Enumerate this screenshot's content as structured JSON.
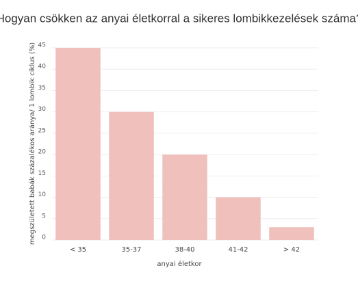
{
  "chart_data": {
    "type": "bar",
    "title": "Hogyan csökken az anyai életkorral a sikeres lombikkezelések száma?",
    "x_label": "anyai életkor",
    "y_label": "megszületett babák százalékos aránya/ 1 lombik ciklus (%)",
    "categories": [
      "< 35",
      "35-37",
      "38-40",
      "41-42",
      "> 42"
    ],
    "values": [
      45,
      30,
      20,
      10,
      3
    ],
    "color": "#efc0bc",
    "ylim": [
      0,
      45
    ],
    "yticks": [
      0,
      5,
      10,
      15,
      20,
      25,
      30,
      35,
      40,
      45
    ],
    "grid": true
  }
}
